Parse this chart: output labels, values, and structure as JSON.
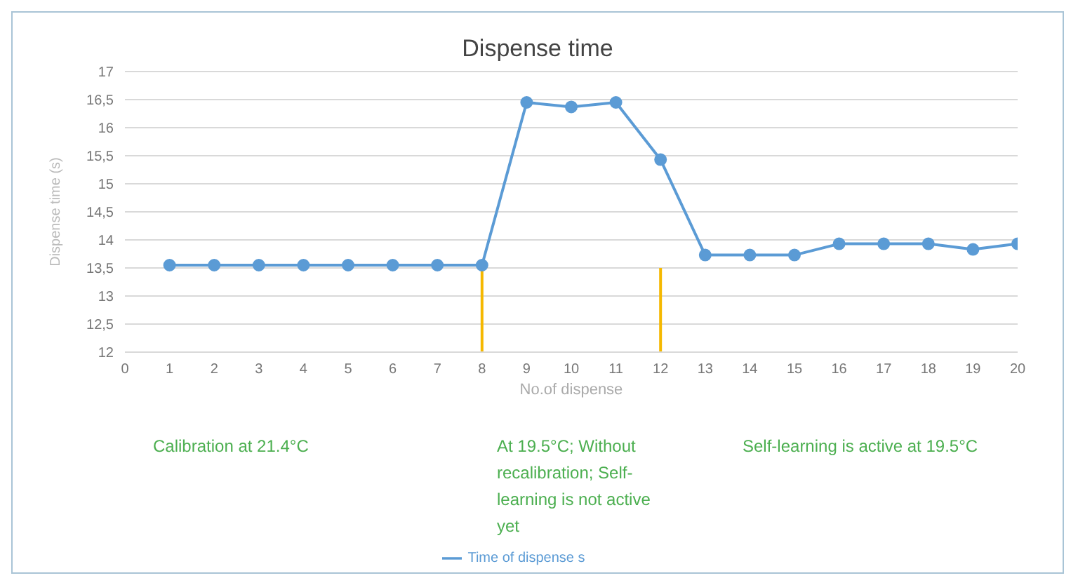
{
  "chart_data": {
    "type": "line",
    "title": "Dispense time",
    "xlabel": "No.of dispense",
    "ylabel": "Dispense time (s)",
    "x": [
      1,
      2,
      3,
      4,
      5,
      6,
      7,
      8,
      9,
      10,
      11,
      12,
      13,
      14,
      15,
      16,
      17,
      18,
      19,
      20
    ],
    "series": [
      {
        "name": "Time of dispense s",
        "color": "#5b9bd5",
        "values": [
          13.55,
          13.55,
          13.55,
          13.55,
          13.55,
          13.55,
          13.55,
          13.55,
          16.45,
          16.37,
          16.45,
          15.43,
          13.73,
          13.73,
          13.73,
          13.93,
          13.93,
          13.93,
          13.83,
          13.93
        ]
      }
    ],
    "xlim": [
      0,
      20
    ],
    "xticks": [
      0,
      1,
      2,
      3,
      4,
      5,
      6,
      7,
      8,
      9,
      10,
      11,
      12,
      13,
      14,
      15,
      16,
      17,
      18,
      19,
      20
    ],
    "ylim": [
      12,
      17
    ],
    "yticks": [
      {
        "value": 12,
        "label": "12"
      },
      {
        "value": 12.5,
        "label": "12,5"
      },
      {
        "value": 13,
        "label": "13"
      },
      {
        "value": 13.5,
        "label": "13,5"
      },
      {
        "value": 14,
        "label": "14"
      },
      {
        "value": 14.5,
        "label": "14,5"
      },
      {
        "value": 15,
        "label": "15"
      },
      {
        "value": 15.5,
        "label": "15,5"
      },
      {
        "value": 16,
        "label": "16"
      },
      {
        "value": 16.5,
        "label": "16,5"
      },
      {
        "value": 17,
        "label": "17"
      }
    ],
    "ref_lines": [
      {
        "axis": "x",
        "value": 8,
        "color": "#f5b800"
      },
      {
        "axis": "x",
        "value": 12,
        "color": "#f5b800"
      }
    ],
    "annotations": [
      "Calibration at 21.4°C",
      "At 19.5°C; Without recalibration; Self-learning is not active yet",
      "Self-learning is active  at 19.5°C"
    ],
    "grid": "y",
    "legend": "bottom",
    "marker": "circle",
    "line_style": "solid"
  }
}
